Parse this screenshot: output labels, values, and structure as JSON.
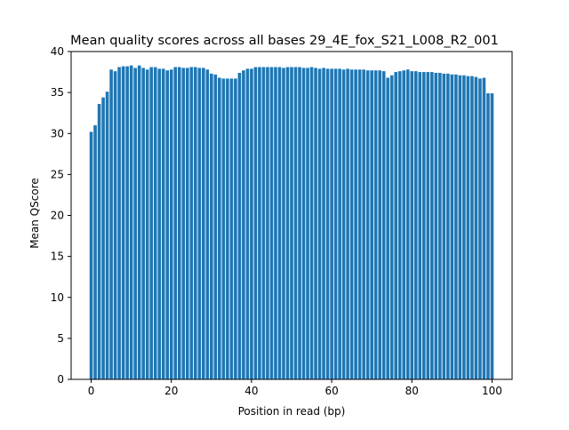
{
  "chart_data": {
    "type": "bar",
    "title": "Mean quality scores across all bases 29_4E_fox_S21_L008_R2_001",
    "xlabel": "Position in read (bp)",
    "ylabel": "Mean QScore",
    "xlim": [
      -5,
      105
    ],
    "ylim": [
      0,
      40
    ],
    "x_ticks": [
      0,
      20,
      40,
      60,
      80,
      100
    ],
    "y_ticks": [
      0,
      5,
      10,
      15,
      20,
      25,
      30,
      35,
      40
    ],
    "grid": false,
    "bar_color": "#1f77b4",
    "x": [
      0,
      1,
      2,
      3,
      4,
      5,
      6,
      7,
      8,
      9,
      10,
      11,
      12,
      13,
      14,
      15,
      16,
      17,
      18,
      19,
      20,
      21,
      22,
      23,
      24,
      25,
      26,
      27,
      28,
      29,
      30,
      31,
      32,
      33,
      34,
      35,
      36,
      37,
      38,
      39,
      40,
      41,
      42,
      43,
      44,
      45,
      46,
      47,
      48,
      49,
      50,
      51,
      52,
      53,
      54,
      55,
      56,
      57,
      58,
      59,
      60,
      61,
      62,
      63,
      64,
      65,
      66,
      67,
      68,
      69,
      70,
      71,
      72,
      73,
      74,
      75,
      76,
      77,
      78,
      79,
      80,
      81,
      82,
      83,
      84,
      85,
      86,
      87,
      88,
      89,
      90,
      91,
      92,
      93,
      94,
      95,
      96,
      97,
      98,
      99,
      100
    ],
    "values": [
      30.2,
      31.0,
      33.6,
      34.4,
      35.1,
      37.8,
      37.6,
      38.1,
      38.2,
      38.2,
      38.3,
      38.0,
      38.3,
      38.0,
      37.8,
      38.1,
      38.1,
      37.9,
      37.9,
      37.7,
      37.8,
      38.1,
      38.1,
      38.0,
      38.0,
      38.1,
      38.1,
      38.0,
      38.0,
      37.8,
      37.3,
      37.2,
      36.8,
      36.7,
      36.7,
      36.7,
      36.7,
      37.4,
      37.7,
      37.9,
      37.9,
      38.1,
      38.1,
      38.1,
      38.1,
      38.1,
      38.1,
      38.1,
      38.0,
      38.1,
      38.1,
      38.1,
      38.1,
      38.0,
      38.0,
      38.1,
      38.0,
      37.9,
      38.0,
      37.9,
      37.9,
      37.9,
      37.9,
      37.8,
      37.9,
      37.8,
      37.8,
      37.8,
      37.8,
      37.7,
      37.7,
      37.7,
      37.7,
      37.6,
      36.8,
      37.1,
      37.5,
      37.6,
      37.7,
      37.8,
      37.6,
      37.6,
      37.5,
      37.5,
      37.5,
      37.5,
      37.4,
      37.4,
      37.3,
      37.3,
      37.2,
      37.2,
      37.1,
      37.1,
      37.0,
      37.0,
      36.9,
      36.7,
      36.8,
      34.9,
      34.9
    ]
  }
}
